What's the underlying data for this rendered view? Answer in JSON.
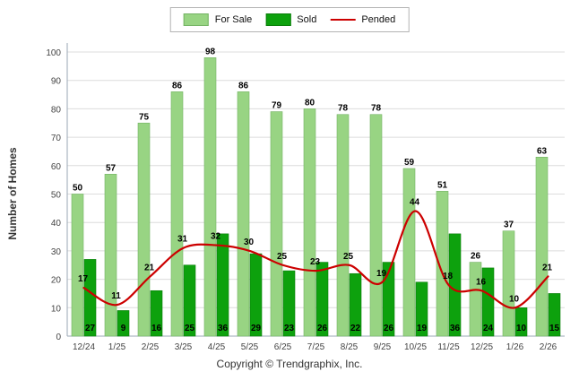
{
  "chart_data": {
    "type": "bar",
    "categories": [
      "12/24",
      "1/25",
      "2/25",
      "3/25",
      "4/25",
      "5/25",
      "6/25",
      "7/25",
      "8/25",
      "9/25",
      "10/25",
      "11/25",
      "12/25",
      "1/26",
      "2/26"
    ],
    "series": [
      {
        "name": "For Sale",
        "type": "bar",
        "color": "#98D483",
        "values": [
          50,
          57,
          75,
          86,
          98,
          86,
          79,
          80,
          78,
          78,
          59,
          51,
          26,
          37,
          63
        ]
      },
      {
        "name": "Sold",
        "type": "bar",
        "color": "#0DA10D",
        "values": [
          27,
          9,
          16,
          25,
          36,
          29,
          23,
          26,
          22,
          26,
          19,
          36,
          24,
          10,
          15
        ]
      },
      {
        "name": "Pended",
        "type": "line",
        "color": "#CC0000",
        "values": [
          17,
          11,
          21,
          31,
          32,
          30,
          25,
          23,
          25,
          19,
          44,
          18,
          16,
          10,
          21
        ]
      }
    ],
    "title": "",
    "xlabel": "",
    "ylabel": "Number of Homes",
    "ylim": [
      0,
      100
    ],
    "ytick_step": 10,
    "grid": true,
    "legend_position": "top"
  },
  "footer": "Copyright © Trendgraphix, Inc."
}
